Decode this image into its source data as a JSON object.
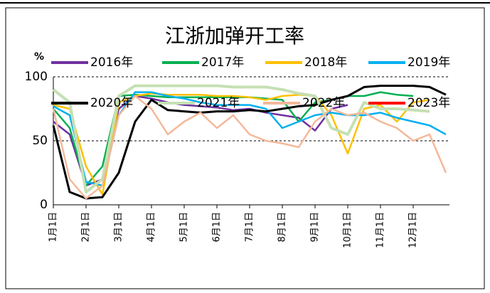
{
  "chart_data": {
    "type": "line",
    "title": "江浙加弹开工率",
    "y_label": "%",
    "categories": [
      "1月1日",
      null,
      "2月1日",
      null,
      "3月1日",
      null,
      "4月1日",
      null,
      "5月1日",
      null,
      "6月1日",
      null,
      "7月1日",
      null,
      "8月1日",
      null,
      "9月1日",
      null,
      "10月1日",
      null,
      "11月1日",
      null,
      "12月1日",
      null,
      null
    ],
    "series": [
      {
        "name": "2016年",
        "color": "#7030a0",
        "values": [
          65,
          55,
          15,
          20,
          75,
          85,
          83,
          80,
          78,
          77,
          76,
          74,
          75,
          72,
          70,
          68,
          58,
          75,
          78,
          null,
          null,
          null,
          null,
          null,
          null
        ]
      },
      {
        "name": "2017年",
        "color": "#00b050",
        "values": [
          75,
          60,
          15,
          30,
          85,
          86,
          85,
          84,
          84,
          84,
          84,
          84,
          84,
          83,
          82,
          65,
          80,
          82,
          85,
          85,
          88,
          86,
          85,
          null,
          null
        ]
      },
      {
        "name": "2018年",
        "color": "#ffc000",
        "values": [
          78,
          75,
          30,
          8,
          80,
          85,
          87,
          86,
          86,
          86,
          85,
          85,
          84,
          82,
          85,
          86,
          85,
          70,
          40,
          75,
          78,
          65,
          80,
          82,
          null
        ]
      },
      {
        "name": "2019年",
        "color": "#00b0f0",
        "values": [
          77,
          70,
          18,
          15,
          70,
          88,
          88,
          85,
          83,
          80,
          78,
          78,
          78,
          75,
          60,
          65,
          70,
          72,
          70,
          70,
          72,
          68,
          65,
          62,
          55
        ]
      },
      {
        "name": "2020年",
        "color": "#000000",
        "values": [
          62,
          10,
          5,
          6,
          25,
          65,
          82,
          74,
          73,
          72,
          73,
          73,
          74,
          73,
          75,
          77,
          78,
          82,
          85,
          92,
          93,
          93,
          93,
          92,
          86
        ]
      },
      {
        "name": "2021年",
        "color": "#c5e0b4",
        "values": [
          90,
          80,
          10,
          20,
          85,
          93,
          93,
          93,
          93,
          93,
          93,
          92,
          92,
          92,
          90,
          87,
          85,
          60,
          55,
          80,
          75,
          75,
          74,
          73,
          null
        ]
      },
      {
        "name": "2022年",
        "color": "#f4b89a",
        "values": [
          75,
          20,
          5,
          15,
          70,
          85,
          75,
          55,
          65,
          72,
          60,
          70,
          55,
          50,
          48,
          45,
          65,
          75,
          70,
          72,
          65,
          60,
          50,
          55,
          25
        ]
      },
      {
        "name": "2023年",
        "color": "#ff0000",
        "values": [
          null,
          null,
          null,
          null,
          null,
          null,
          null,
          null,
          null,
          null,
          null,
          null,
          null,
          null,
          null,
          null,
          null,
          null,
          null,
          null,
          null,
          null,
          null,
          null,
          null
        ]
      }
    ],
    "ylim": [
      0,
      100
    ],
    "yticks": [
      0,
      50,
      100
    ],
    "grid": true
  }
}
